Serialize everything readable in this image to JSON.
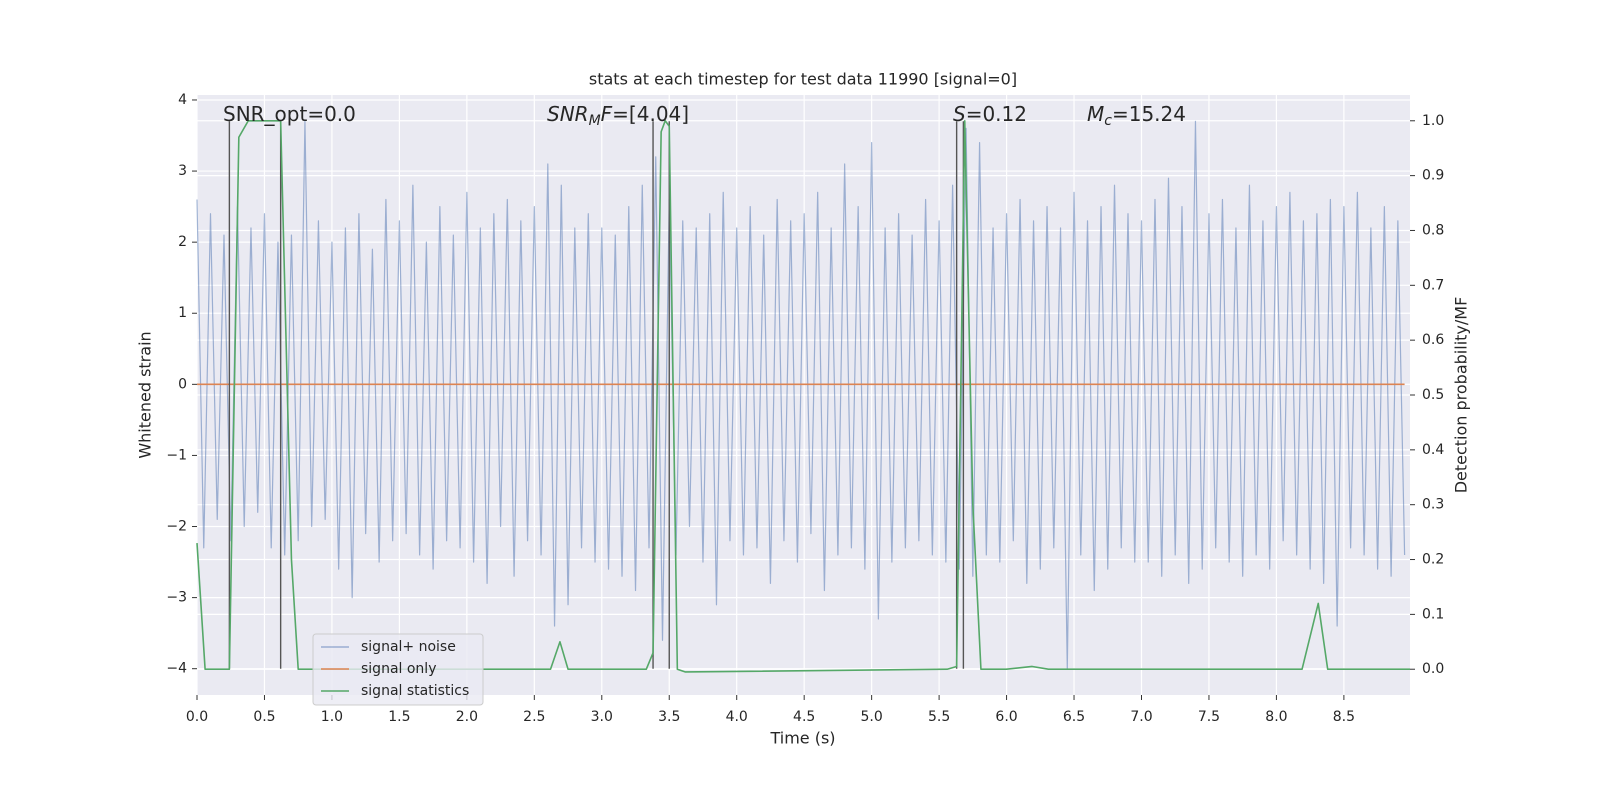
{
  "chart_data": {
    "type": "line",
    "title": "stats at each timestep for test data 11990 [signal=0]",
    "x_label": "Time (s)",
    "y_label": "Whitened strain",
    "y2_label": "Detection probability/MF",
    "xlim": [
      0,
      8.99
    ],
    "ylim": [
      -4.37,
      4.07
    ],
    "y2lim": [
      -0.047,
      1.047
    ],
    "xticks": [
      {
        "value": 0,
        "label": "0.0"
      },
      0.5,
      {
        "value": 1,
        "label": "1.0"
      },
      1.5,
      {
        "value": 2,
        "label": "2.0"
      },
      2.5,
      {
        "value": 3,
        "label": "3.0"
      },
      3.5,
      {
        "value": 4,
        "label": "4.0"
      },
      4.5,
      {
        "value": 5,
        "label": "5.0"
      },
      5.5,
      {
        "value": 6,
        "label": "6.0"
      },
      6.5,
      {
        "value": 7,
        "label": "7.0"
      },
      7.5,
      {
        "value": 8,
        "label": "8.0"
      },
      8.5
    ],
    "yticks": [
      {
        "value": -4,
        "label": "−4"
      },
      {
        "value": -3,
        "label": "−3"
      },
      {
        "value": -2,
        "label": "−2"
      },
      {
        "value": -1,
        "label": "−1"
      },
      0,
      1,
      2,
      3,
      4
    ],
    "y2ticks": [
      {
        "value": 0,
        "label": "0.0"
      },
      0.1,
      0.2,
      0.3,
      0.4,
      0.5,
      0.6,
      0.7,
      0.8,
      0.9,
      {
        "value": 1,
        "label": "1.0"
      }
    ],
    "grid": true,
    "legend": "lower left",
    "series": [
      {
        "name": "signal+ noise",
        "color": "#4c72b0",
        "alpha": 0.5,
        "x": [
          0,
          0.05,
          0.1,
          0.15,
          0.2,
          0.25,
          0.3,
          0.35,
          0.4,
          0.45,
          0.5,
          0.55,
          0.6,
          0.65,
          0.7,
          0.75,
          0.8,
          0.85,
          0.9,
          0.95,
          1,
          1.05,
          1.1,
          1.15,
          1.2,
          1.25,
          1.3,
          1.35,
          1.4,
          1.45,
          1.5,
          1.55,
          1.6,
          1.65,
          1.7,
          1.75,
          1.8,
          1.85,
          1.9,
          1.95,
          2,
          2.05,
          2.1,
          2.15,
          2.2,
          2.25,
          2.3,
          2.35,
          2.4,
          2.45,
          2.5,
          2.55,
          2.6,
          2.65,
          2.7,
          2.75,
          2.8,
          2.85,
          2.9,
          2.95,
          3,
          3.05,
          3.1,
          3.15,
          3.2,
          3.25,
          3.3,
          3.35,
          3.4,
          3.45,
          3.5,
          3.55,
          3.6,
          3.65,
          3.7,
          3.75,
          3.8,
          3.85,
          3.9,
          3.95,
          4,
          4.05,
          4.1,
          4.15,
          4.2,
          4.25,
          4.3,
          4.35,
          4.4,
          4.45,
          4.5,
          4.55,
          4.6,
          4.65,
          4.7,
          4.75,
          4.8,
          4.85,
          4.9,
          4.95,
          5,
          5.05,
          5.1,
          5.15,
          5.2,
          5.25,
          5.3,
          5.35,
          5.4,
          5.45,
          5.5,
          5.55,
          5.6,
          5.65,
          5.7,
          5.75,
          5.8,
          5.85,
          5.9,
          5.95,
          6,
          6.05,
          6.1,
          6.15,
          6.2,
          6.25,
          6.3,
          6.35,
          6.4,
          6.45,
          6.5,
          6.55,
          6.6,
          6.65,
          6.7,
          6.75,
          6.8,
          6.85,
          6.9,
          6.95,
          7,
          7.05,
          7.1,
          7.15,
          7.2,
          7.25,
          7.3,
          7.35,
          7.4,
          7.45,
          7.5,
          7.55,
          7.6,
          7.65,
          7.7,
          7.75,
          7.8,
          7.85,
          7.9,
          7.95,
          8,
          8.05,
          8.1,
          8.15,
          8.2,
          8.25,
          8.3,
          8.35,
          8.4,
          8.45,
          8.5,
          8.55,
          8.6,
          8.65,
          8.7,
          8.75,
          8.8,
          8.85,
          8.9,
          8.95
        ],
        "values": [
          2.6,
          -2.3,
          2.4,
          -1.9,
          2.1,
          -2.2,
          2.5,
          -2.0,
          2.2,
          -1.8,
          2.4,
          -2.3,
          2.0,
          -2.4,
          2.1,
          -2.2,
          3.7,
          -2.0,
          2.3,
          -1.9,
          2.0,
          -2.6,
          2.2,
          -3.0,
          2.4,
          -2.1,
          1.9,
          -2.5,
          2.6,
          -2.2,
          2.3,
          -2.1,
          2.8,
          -2.4,
          2.0,
          -2.6,
          2.5,
          -2.2,
          2.1,
          -2.3,
          2.7,
          -2.5,
          2.2,
          -2.8,
          2.4,
          -2.0,
          2.6,
          -2.7,
          2.3,
          -2.2,
          2.5,
          -2.4,
          3.1,
          -3.4,
          2.8,
          -3.1,
          2.2,
          -2.3,
          2.4,
          -2.5,
          2.2,
          -2.6,
          2.1,
          -2.7,
          2.5,
          -2.9,
          2.8,
          -2.3,
          3.2,
          -3.6,
          2.6,
          -2.4,
          2.3,
          -2.0,
          2.2,
          -2.5,
          2.4,
          -3.1,
          2.7,
          -2.2,
          2.2,
          -2.4,
          2.5,
          -2.3,
          2.1,
          -2.8,
          2.6,
          -2.2,
          2.3,
          -2.5,
          2.4,
          -2.1,
          2.7,
          -2.9,
          2.2,
          -2.4,
          3.1,
          -2.3,
          2.5,
          -2.6,
          3.4,
          -3.3,
          2.2,
          -2.5,
          2.4,
          -2.3,
          2.1,
          -2.2,
          2.6,
          -2.4,
          2.3,
          -2.5,
          2.8,
          -2.6,
          3.6,
          -2.7,
          3.4,
          -2.4,
          2.2,
          -2.5,
          2.4,
          -2.2,
          2.6,
          -2.8,
          2.3,
          -2.6,
          2.5,
          -2.3,
          2.2,
          -4.0,
          2.7,
          -2.4,
          2.3,
          -2.9,
          2.5,
          -2.6,
          2.8,
          -2.3,
          2.4,
          -2.5,
          2.3,
          -2.5,
          2.6,
          -2.7,
          2.9,
          -2.4,
          2.5,
          -2.8,
          3.7,
          -2.6,
          2.4,
          -2.3,
          2.6,
          -2.5,
          2.2,
          -2.7,
          2.8,
          -2.4,
          2.3,
          -2.6,
          2.5,
          -2.2,
          2.7,
          -2.4,
          2.3,
          -2.6,
          2.4,
          -2.8,
          2.6,
          -3.4,
          2.5,
          -2.3,
          2.7,
          -2.4,
          2.2,
          -2.6,
          2.5,
          -2.7,
          2.3,
          -2.4
        ]
      },
      {
        "name": "signal only",
        "color": "#dd8452",
        "alpha": 1,
        "x": [
          0,
          8.95
        ],
        "values": [
          0,
          0
        ]
      },
      {
        "name": "signal statistics",
        "color": "#55a868",
        "alpha": 1,
        "axis": "y2",
        "x": [
          0,
          0.06,
          0.24,
          0.31,
          0.38,
          0.62,
          0.7,
          0.75,
          2.62,
          2.69,
          2.75,
          3.33,
          3.38,
          3.44,
          3.47,
          3.5,
          3.56,
          3.62,
          5.56,
          5.63,
          5.69,
          5.75,
          5.81,
          6.0,
          6.19,
          6.31,
          8.19,
          8.31,
          8.38,
          8.5,
          8.99
        ],
        "values": [
          0.23,
          0,
          0,
          0.97,
          1.0,
          1.0,
          0.2,
          0,
          0,
          0.05,
          0,
          0,
          0.03,
          0.98,
          1.0,
          0.99,
          0,
          -0.005,
          0,
          0.005,
          1.0,
          0.3,
          0,
          0,
          0.005,
          0,
          0,
          0.12,
          0,
          0,
          0
        ]
      }
    ],
    "vlines": {
      "x": [
        0.24,
        0.62,
        3.38,
        3.5,
        5.63,
        5.68
      ],
      "ymin": -4,
      "ymax": 3.7,
      "color": "#555555"
    },
    "annotations": [
      {
        "parts": [
          {
            "text": "SNR_opt=0.0"
          }
        ]
      },
      {
        "parts": [
          {
            "text": "SNR",
            "italic": true
          },
          {
            "text": "M",
            "italic": true,
            "sub": true
          },
          {
            "text": "F",
            "italic": true
          },
          {
            "text": "=[4.04]"
          }
        ]
      },
      {
        "parts": [
          {
            "text": "S",
            "italic": true
          },
          {
            "text": "=0.12"
          }
        ]
      },
      {
        "parts": [
          {
            "text": "M",
            "italic": true
          },
          {
            "text": "c",
            "italic": true,
            "sub": true
          },
          {
            "text": "=15.24"
          }
        ]
      }
    ]
  }
}
